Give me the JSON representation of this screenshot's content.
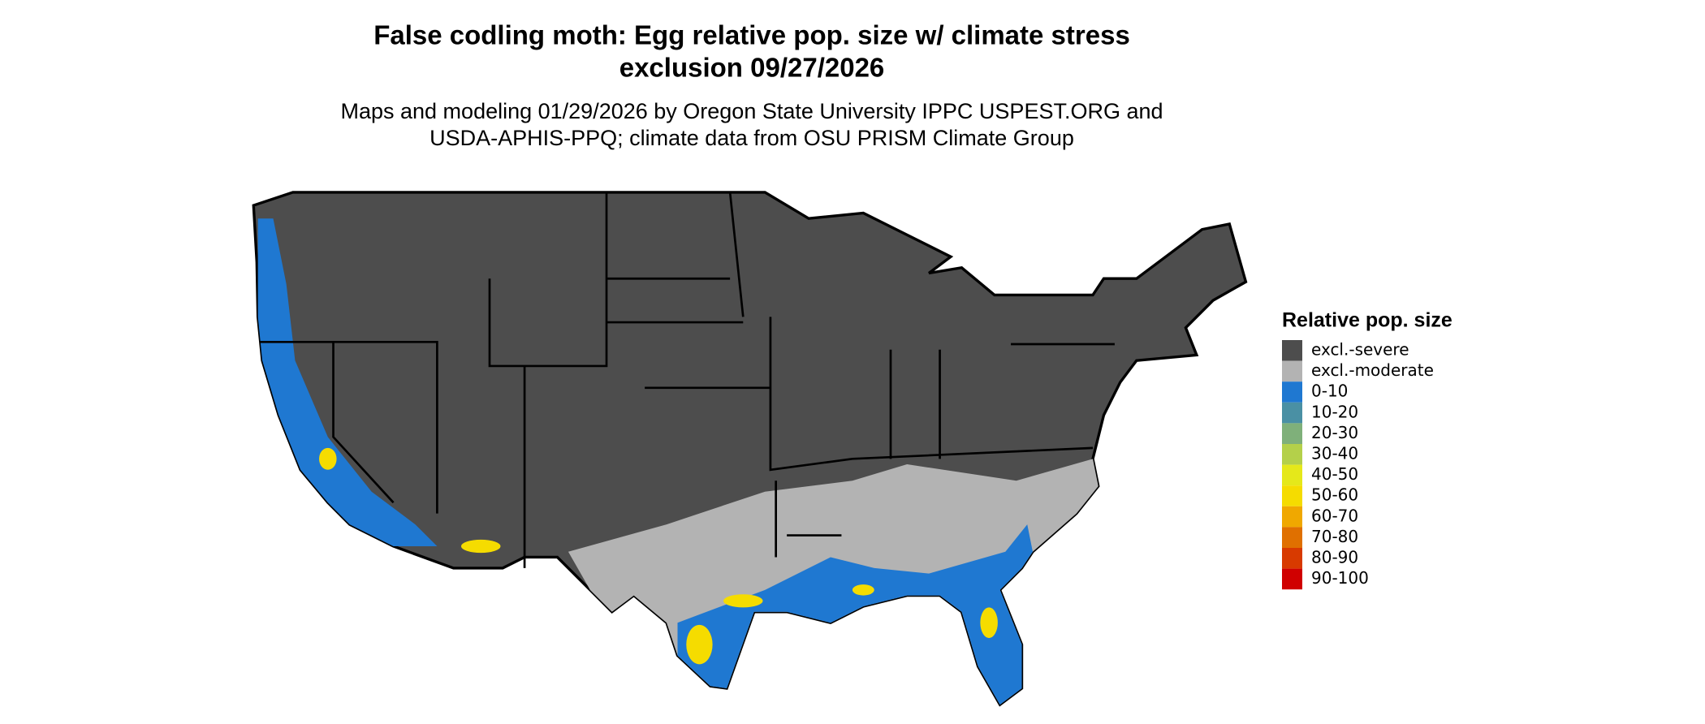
{
  "title_lines": [
    "False codling moth: Egg relative pop. size w/ climate stress",
    "exclusion 09/27/2026"
  ],
  "subtitle_lines": [
    "Maps and modeling 01/29/2026 by Oregon State University IPPC USPEST.ORG and",
    "USDA-APHIS-PPQ; climate data from OSU PRISM Climate Group"
  ],
  "legend": {
    "title": "Relative pop. size",
    "items": [
      {
        "label": "excl.-severe",
        "color": "#4d4d4d"
      },
      {
        "label": "excl.-moderate",
        "color": "#b3b3b3"
      },
      {
        "label": "0-10",
        "color": "#1f78d1"
      },
      {
        "label": "10-20",
        "color": "#4a90a4"
      },
      {
        "label": "20-30",
        "color": "#7fb07a"
      },
      {
        "label": "30-40",
        "color": "#b4d04a"
      },
      {
        "label": "40-50",
        "color": "#e5e81a"
      },
      {
        "label": "50-60",
        "color": "#f5dc00"
      },
      {
        "label": "60-70",
        "color": "#f0a800"
      },
      {
        "label": "70-80",
        "color": "#e07000"
      },
      {
        "label": "80-90",
        "color": "#d83a00"
      },
      {
        "label": "90-100",
        "color": "#d00000"
      }
    ]
  }
}
